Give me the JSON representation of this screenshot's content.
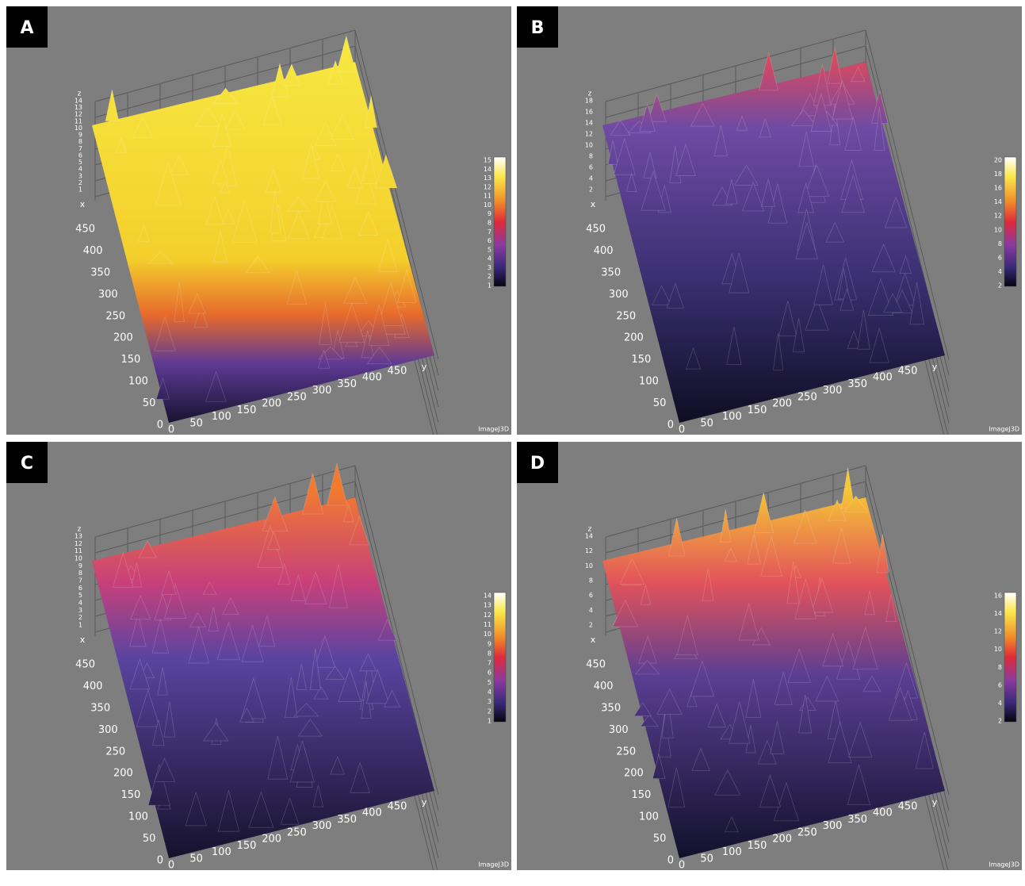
{
  "panels": [
    {
      "label": "A",
      "axis_labels": {
        "x": "x",
        "y": "y",
        "z": "z"
      },
      "x_ticks": [
        0,
        50,
        100,
        150,
        200,
        250,
        300,
        350,
        400,
        450
      ],
      "y_ticks": [
        0,
        50,
        100,
        150,
        200,
        250,
        300,
        350,
        400,
        450
      ],
      "z_ticks": [
        1,
        2,
        3,
        4,
        5,
        6,
        7,
        8,
        9,
        10,
        11,
        12,
        13,
        14
      ],
      "colorbar_ticks": [
        1,
        2,
        3,
        4,
        5,
        6,
        7,
        8,
        9,
        10,
        11,
        12,
        13,
        14,
        15
      ],
      "credit": "ImageJ3D"
    },
    {
      "label": "B",
      "axis_labels": {
        "x": "x",
        "y": "y",
        "z": "z"
      },
      "x_ticks": [
        0,
        50,
        100,
        150,
        200,
        250,
        300,
        350,
        400,
        450
      ],
      "y_ticks": [
        0,
        50,
        100,
        150,
        200,
        250,
        300,
        350,
        400,
        450
      ],
      "z_ticks": [
        2,
        4,
        6,
        8,
        10,
        12,
        14,
        16,
        18
      ],
      "colorbar_ticks": [
        2,
        4,
        6,
        8,
        10,
        12,
        14,
        16,
        18,
        20
      ],
      "credit": "ImageJ3D"
    },
    {
      "label": "C",
      "axis_labels": {
        "x": "x",
        "y": "y",
        "z": "z"
      },
      "x_ticks": [
        0,
        50,
        100,
        150,
        200,
        250,
        300,
        350,
        400,
        450
      ],
      "y_ticks": [
        0,
        50,
        100,
        150,
        200,
        250,
        300,
        350,
        400,
        450
      ],
      "z_ticks": [
        1,
        2,
        3,
        4,
        5,
        6,
        7,
        8,
        9,
        10,
        11,
        12,
        13
      ],
      "colorbar_ticks": [
        1,
        2,
        3,
        4,
        5,
        6,
        7,
        8,
        9,
        10,
        11,
        12,
        13,
        14
      ],
      "credit": "ImageJ3D"
    },
    {
      "label": "D",
      "axis_labels": {
        "x": "x",
        "y": "y",
        "z": "z"
      },
      "x_ticks": [
        0,
        50,
        100,
        150,
        200,
        250,
        300,
        350,
        400,
        450
      ],
      "y_ticks": [
        0,
        50,
        100,
        150,
        200,
        250,
        300,
        350,
        400,
        450
      ],
      "z_ticks": [
        2,
        4,
        6,
        8,
        10,
        12,
        14
      ],
      "colorbar_ticks": [
        2,
        4,
        6,
        8,
        10,
        12,
        14,
        16
      ],
      "credit": "ImageJ3D"
    }
  ]
}
